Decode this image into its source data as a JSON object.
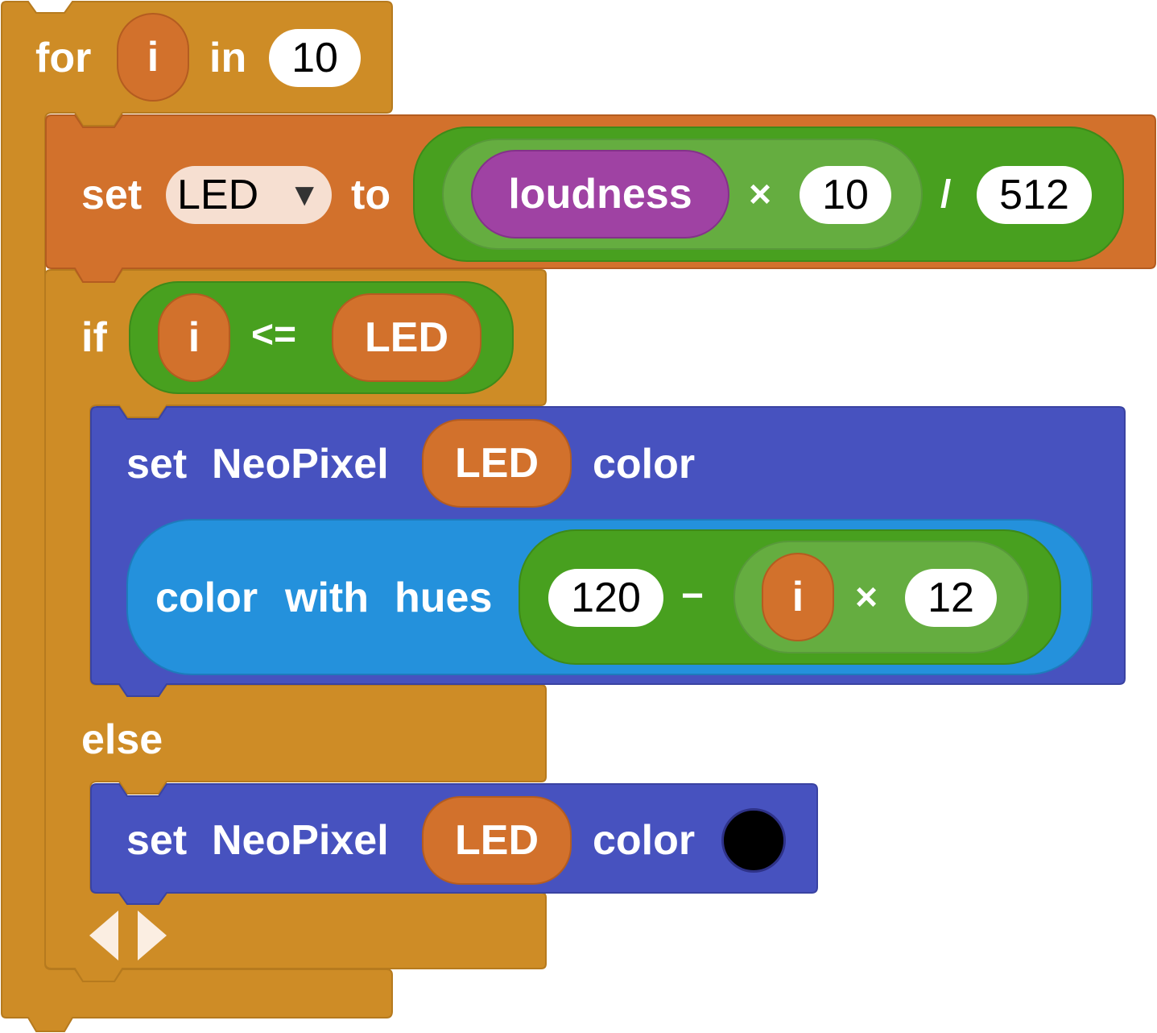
{
  "for_block": {
    "keyword": "for",
    "var": "i",
    "in_label": "in",
    "count": "10"
  },
  "set_block": {
    "set_label": "set",
    "dropdown_value": "LED",
    "dropdown_arrow": "▼",
    "to_label": "to",
    "sensor": "loudness",
    "multiply_op": "×",
    "multiplier": "10",
    "divide_op": "/",
    "divisor": "512"
  },
  "if_block": {
    "keyword": "if",
    "left": "i",
    "op": "<=",
    "right": "LED",
    "else_label": "else"
  },
  "neopixel_block_1": {
    "set_label": "set",
    "neopixel_label": "NeoPixel",
    "index": "LED",
    "color_label": "color",
    "hue_block": {
      "color_label": "color",
      "with_label": "with",
      "hues_label": "hues"
    },
    "hue_expr": {
      "base": "120",
      "minus_op": "−",
      "var": "i",
      "times_op": "×",
      "factor": "12"
    }
  },
  "neopixel_block_2": {
    "set_label": "set",
    "neopixel_label": "NeoPixel",
    "index": "LED",
    "color_label": "color",
    "color_value": "#000000"
  },
  "mutator": {
    "left_icon": "triangle-left-icon",
    "right_icon": "triangle-right-icon"
  },
  "colors": {
    "loops": "#ce8c26",
    "variables": "#d2712c",
    "math": "#48a01f",
    "math_inner": "#65ad40",
    "neopixel": "#4752bf",
    "color_block": "#2491dc",
    "sensor": "#9f42a3"
  }
}
